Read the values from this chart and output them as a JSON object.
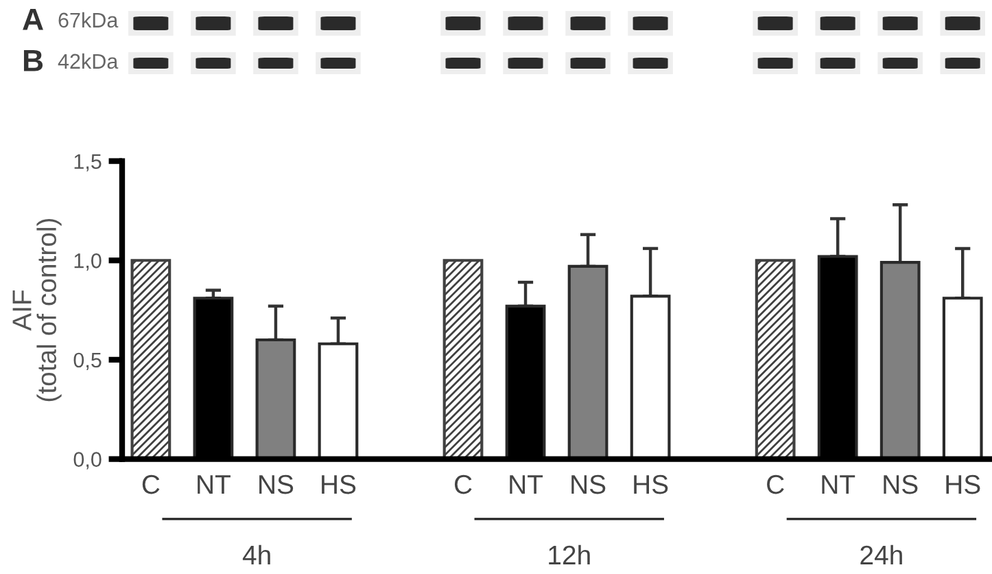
{
  "chart_data": {
    "type": "bar",
    "ylabel": "AIF\n(total of control)",
    "categories": [
      "C",
      "NT",
      "NS",
      "HS",
      "C",
      "NT",
      "NS",
      "HS",
      "C",
      "NT",
      "NS",
      "HS"
    ],
    "values": [
      1.0,
      0.81,
      0.6,
      0.58,
      1.0,
      0.77,
      0.97,
      0.82,
      1.0,
      1.02,
      0.99,
      0.81
    ],
    "errors": [
      null,
      [
        0.81,
        0.85
      ],
      [
        0.6,
        0.77
      ],
      [
        0.58,
        0.71
      ],
      null,
      [
        0.77,
        0.89
      ],
      [
        0.97,
        1.13
      ],
      [
        0.82,
        1.06
      ],
      null,
      [
        1.02,
        1.21
      ],
      [
        0.99,
        1.28
      ],
      [
        0.81,
        1.06
      ]
    ],
    "colors": [
      "#404040",
      "#000000",
      "#808080",
      "#ffffff",
      "#404040",
      "#000000",
      "#808080",
      "#ffffff",
      "#404040",
      "#000000",
      "#808080",
      "#ffffff"
    ],
    "ylim": [
      0,
      1.5
    ],
    "yticks": [
      {
        "value": 0,
        "label": "0,0"
      },
      {
        "value": 0.5,
        "label": "0,5"
      },
      {
        "value": 1.0,
        "label": "1,0"
      },
      {
        "value": 1.5,
        "label": "1,5"
      }
    ],
    "grid": false,
    "annotations": [
      "4h",
      "12h",
      "24h",
      "A",
      "67kDa",
      "B",
      "42kDa"
    ]
  }
}
